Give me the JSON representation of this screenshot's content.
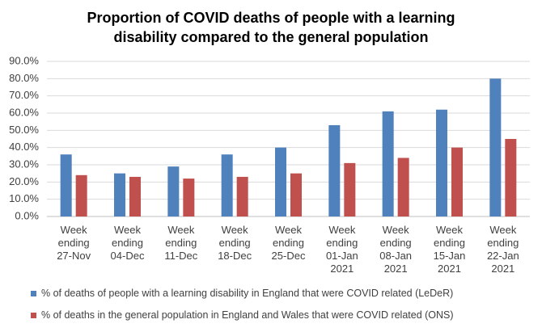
{
  "chart_data": {
    "type": "bar",
    "title": "Proportion of COVID deaths of people with a learning disability compared to the general population",
    "categories": [
      "Week ending 27-Nov",
      "Week ending 04-Dec",
      "Week ending 11-Dec",
      "Week ending 18-Dec",
      "Week ending 25-Dec",
      "Week ending 01-Jan 2021",
      "Week ending 08-Jan 2021",
      "Week ending 15-Jan 2021",
      "Week ending 22-Jan 2021"
    ],
    "series": [
      {
        "name": "% of deaths of people with a learning disability in England that were COVID related (LeDeR)",
        "color": "#4f81bd",
        "values": [
          36,
          25,
          29,
          36,
          40,
          53,
          61,
          62,
          80
        ]
      },
      {
        "name": "% of deaths in the general population in England and Wales that were COVID related (ONS)",
        "color": "#c0504d",
        "values": [
          24,
          23,
          22,
          23,
          25,
          31,
          34,
          40,
          45
        ]
      }
    ],
    "ylim": [
      0,
      90
    ],
    "yticks": [
      {
        "value": 0,
        "label": "0.0%"
      },
      {
        "value": 10,
        "label": "10.0%"
      },
      {
        "value": 20,
        "label": "20.0%"
      },
      {
        "value": 30,
        "label": "30.0%"
      },
      {
        "value": 40,
        "label": "40.0%"
      },
      {
        "value": 50,
        "label": "50.0%"
      },
      {
        "value": 60,
        "label": "60.0%"
      },
      {
        "value": 70,
        "label": "70.0%"
      },
      {
        "value": 80,
        "label": "80.0%"
      },
      {
        "value": 90,
        "label": "90.0%"
      }
    ],
    "grid": true,
    "legend": "bottom"
  }
}
